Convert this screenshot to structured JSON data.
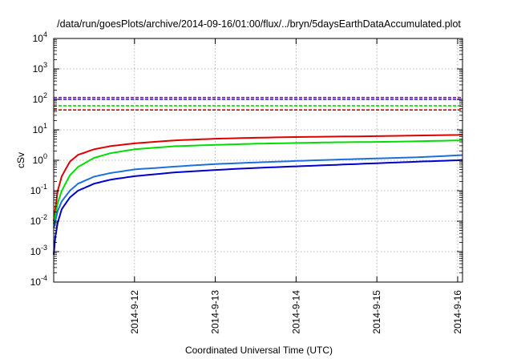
{
  "chart_data": {
    "type": "line",
    "title": "/data/run/goesPlots/archive/2014-09-16/01:00/flux/../bryn/5daysEarthDataAccumulated.plot",
    "xlabel": "Coordinated Universal Time (UTC)",
    "ylabel": "cSv",
    "yscale": "log",
    "ylim": [
      0.0001,
      10000
    ],
    "xlim": [
      0.0,
      5.06
    ],
    "grid": true,
    "legend": "none",
    "x_ticks": [
      {
        "x": 1.0,
        "label": "2014-9-12"
      },
      {
        "x": 2.0,
        "label": "2014-9-13"
      },
      {
        "x": 3.0,
        "label": "2014-9-14"
      },
      {
        "x": 4.0,
        "label": "2014-9-15"
      },
      {
        "x": 5.0,
        "label": "2014-9-16"
      }
    ],
    "y_ticks": [
      {
        "v": 0.0001,
        "base": "10",
        "exp": "-4"
      },
      {
        "v": 0.001,
        "base": "10",
        "exp": "-3"
      },
      {
        "v": 0.01,
        "base": "10",
        "exp": "-2"
      },
      {
        "v": 0.1,
        "base": "10",
        "exp": "-1"
      },
      {
        "v": 1,
        "base": "10",
        "exp": "0"
      },
      {
        "v": 10,
        "base": "10",
        "exp": "1"
      },
      {
        "v": 100,
        "base": "10",
        "exp": "2"
      },
      {
        "v": 1000,
        "base": "10",
        "exp": "3"
      },
      {
        "v": 10000,
        "base": "10",
        "exp": "4"
      }
    ],
    "series": [
      {
        "color": "#dd0000",
        "style": "solid",
        "x": [
          0.0,
          0.05,
          0.1,
          0.2,
          0.3,
          0.5,
          0.7,
          1.0,
          1.5,
          2.0,
          2.5,
          3.0,
          3.5,
          4.0,
          4.5,
          5.0,
          5.06
        ],
        "y": [
          0.01,
          0.1,
          0.3,
          0.9,
          1.5,
          2.3,
          2.9,
          3.6,
          4.5,
          5.1,
          5.5,
          5.8,
          6.0,
          6.2,
          6.5,
          6.8,
          6.9
        ]
      },
      {
        "color": "#00dd00",
        "style": "solid",
        "x": [
          0.0,
          0.05,
          0.1,
          0.2,
          0.3,
          0.5,
          0.7,
          1.0,
          1.5,
          2.0,
          2.5,
          3.0,
          3.5,
          4.0,
          4.5,
          5.0,
          5.06
        ],
        "y": [
          0.008,
          0.04,
          0.1,
          0.32,
          0.6,
          1.2,
          1.7,
          2.3,
          2.9,
          3.2,
          3.5,
          3.7,
          3.9,
          4.0,
          4.2,
          4.5,
          4.5
        ]
      },
      {
        "color": "#1e6fdc",
        "style": "solid",
        "x": [
          0.0,
          0.05,
          0.1,
          0.2,
          0.3,
          0.5,
          0.7,
          1.0,
          1.5,
          2.0,
          2.5,
          3.0,
          3.5,
          4.0,
          4.5,
          5.0,
          5.06
        ],
        "y": [
          0.006,
          0.022,
          0.045,
          0.1,
          0.17,
          0.29,
          0.38,
          0.5,
          0.62,
          0.75,
          0.85,
          0.95,
          1.05,
          1.15,
          1.25,
          1.45,
          1.48
        ]
      },
      {
        "color": "#0000cc",
        "style": "solid",
        "x": [
          0.0,
          0.02,
          0.05,
          0.1,
          0.2,
          0.3,
          0.5,
          0.7,
          1.0,
          1.5,
          2.0,
          2.5,
          3.0,
          3.5,
          4.0,
          4.5,
          5.0,
          5.06
        ],
        "y": [
          0.0008,
          0.003,
          0.009,
          0.025,
          0.06,
          0.1,
          0.17,
          0.23,
          0.3,
          0.4,
          0.48,
          0.56,
          0.63,
          0.71,
          0.8,
          0.9,
          1.0,
          1.02
        ]
      },
      {
        "color": "#9400d3",
        "style": "dashed",
        "x": [
          0.0,
          5.06
        ],
        "y": [
          115,
          115
        ]
      },
      {
        "color": "#1a1acc",
        "style": "dashed",
        "x": [
          0.0,
          5.06
        ],
        "y": [
          100,
          100
        ]
      },
      {
        "color": "#00dd00",
        "style": "dashed",
        "x": [
          0.0,
          5.06
        ],
        "y": [
          62,
          62
        ]
      },
      {
        "color": "#dd0000",
        "style": "dashed",
        "x": [
          0.0,
          5.06
        ],
        "y": [
          45,
          45
        ]
      }
    ]
  }
}
